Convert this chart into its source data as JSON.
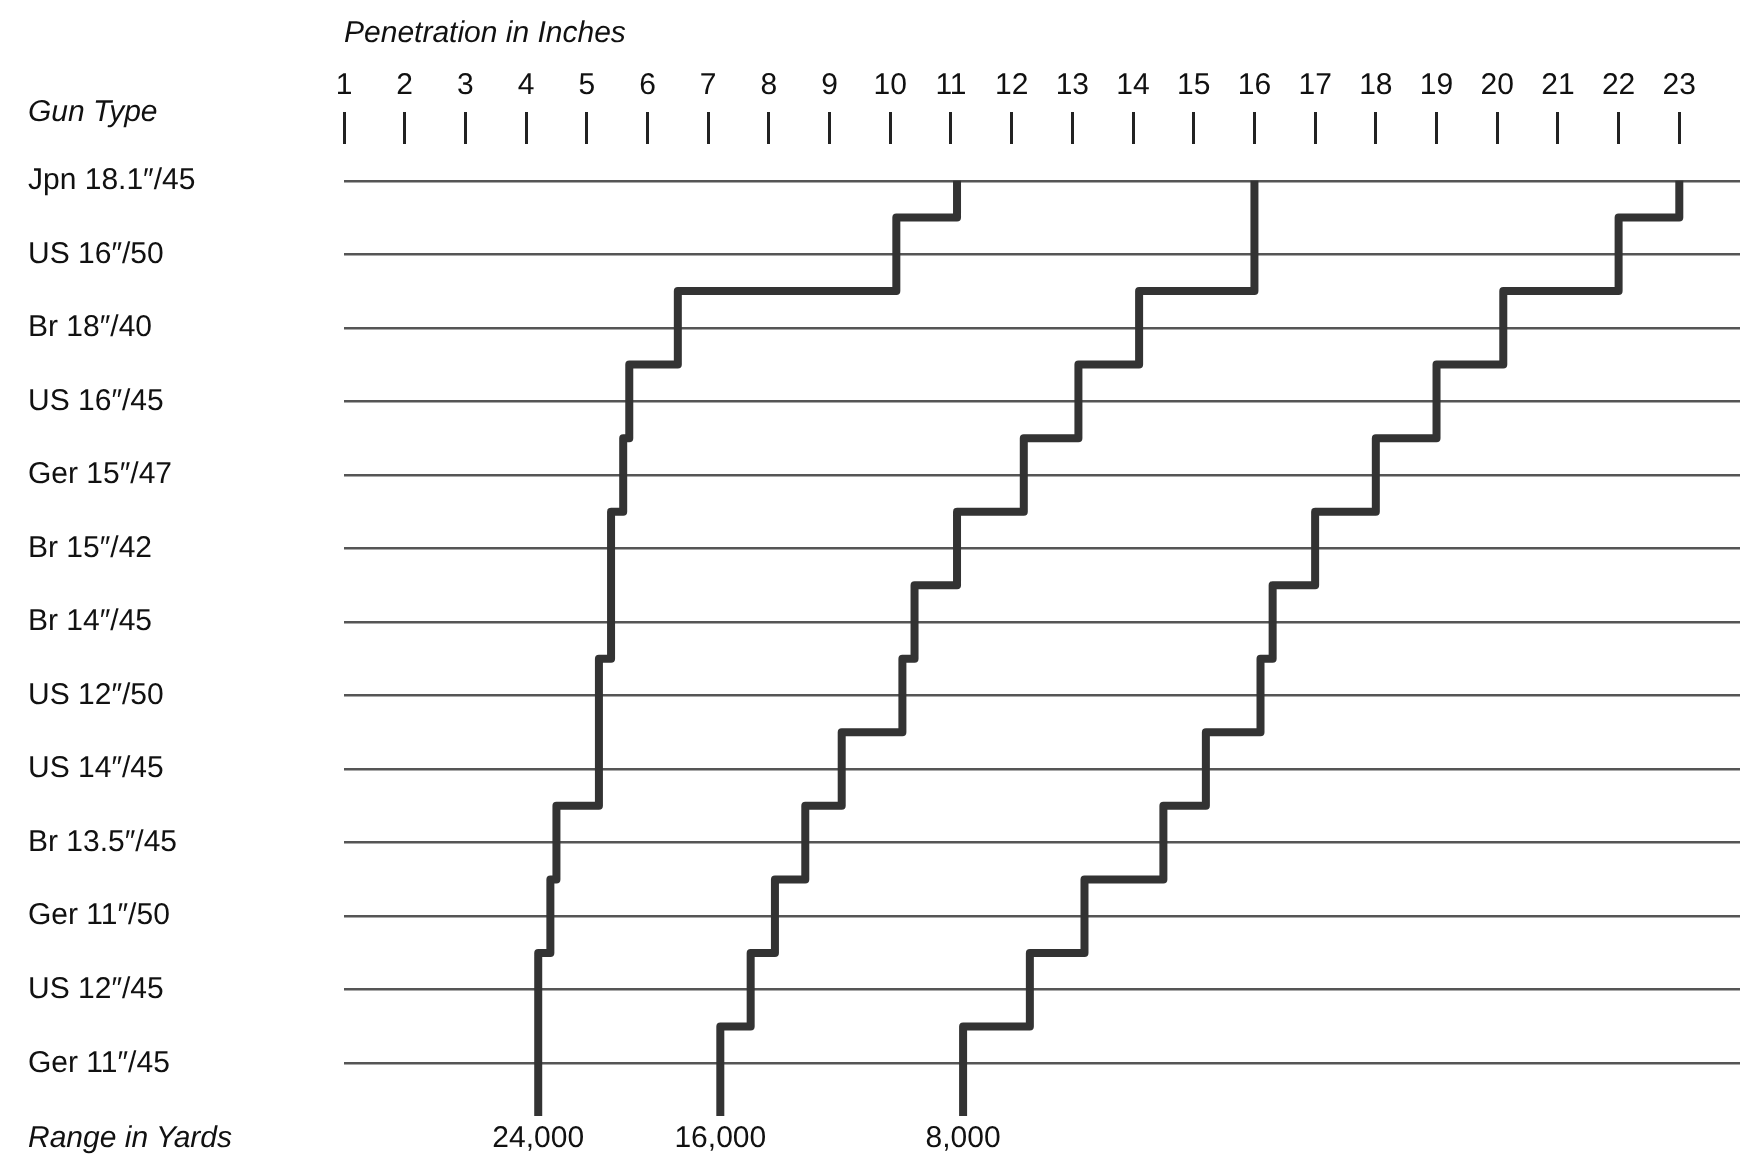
{
  "chart_data": {
    "type": "step",
    "orientation": "horizontal",
    "xlabel": "Penetration in Inches",
    "ylabel": "Gun Type",
    "legend_title": "Range in Yards",
    "categories": [
      "Jpn 18.1″/45",
      "US 16″/50",
      "Br 18″/40",
      "US 16″/45",
      "Ger 15″/47",
      "Br 15″/42",
      "Br 14″/45",
      "US 12″/50",
      "US 14″/45",
      "Br 13.5″/45",
      "Ger 11″/50",
      "US 12″/45",
      "Ger 11″/45"
    ],
    "xlim": [
      1,
      24
    ],
    "xticks": [
      1,
      2,
      3,
      4,
      5,
      6,
      7,
      8,
      9,
      10,
      11,
      12,
      13,
      14,
      15,
      16,
      17,
      18,
      19,
      20,
      21,
      22,
      23
    ],
    "grid": "y",
    "series": [
      {
        "name": "24,000",
        "color": "#333333",
        "values": [
          11.1,
          10.1,
          6.5,
          5.7,
          5.6,
          5.4,
          5.4,
          5.2,
          5.2,
          4.5,
          4.4,
          4.2,
          4.2
        ]
      },
      {
        "name": "16,000",
        "color": "#333333",
        "values": [
          16.0,
          16.0,
          14.1,
          13.1,
          12.2,
          11.1,
          10.4,
          10.2,
          9.2,
          8.6,
          8.1,
          7.7,
          7.2
        ]
      },
      {
        "name": "8,000",
        "color": "#333333",
        "values": [
          23.0,
          22.0,
          20.1,
          19.0,
          18.0,
          17.0,
          16.3,
          16.1,
          15.2,
          14.5,
          13.2,
          12.3,
          11.2
        ]
      }
    ]
  }
}
